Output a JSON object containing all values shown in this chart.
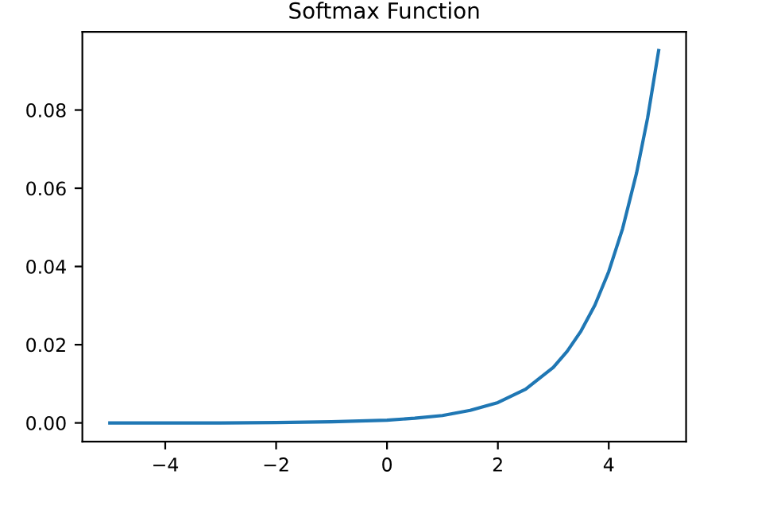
{
  "chart_data": {
    "type": "line",
    "title": "Softmax Function",
    "x": [
      -5,
      -4,
      -3,
      -2,
      -1,
      0,
      0.5,
      1,
      1.5,
      2,
      2.5,
      3,
      3.25,
      3.5,
      3.75,
      4,
      4.25,
      4.5,
      4.7,
      4.9
    ],
    "series": [
      {
        "color": "#1f77b4",
        "values": [
          0.0,
          0.0,
          0.0,
          0.0001,
          0.0003,
          0.0007,
          0.0012,
          0.0019,
          0.0032,
          0.0052,
          0.0086,
          0.0142,
          0.0183,
          0.0235,
          0.0301,
          0.0387,
          0.0497,
          0.0638,
          0.0779,
          0.0952
        ]
      }
    ],
    "xlim": [
      -5.495,
      5.395
    ],
    "ylim": [
      -0.0048,
      0.1
    ],
    "xticks": [
      {
        "value": -4,
        "label": "−4"
      },
      {
        "value": -2,
        "label": "−2"
      },
      0,
      2,
      4
    ],
    "yticks": [
      {
        "value": 0,
        "label": "0.00"
      },
      {
        "value": 0.02,
        "label": "0.02"
      },
      {
        "value": 0.04,
        "label": "0.04"
      },
      {
        "value": 0.06,
        "label": "0.06"
      },
      {
        "value": 0.08,
        "label": "0.08"
      }
    ],
    "grid": false,
    "legend": false
  }
}
